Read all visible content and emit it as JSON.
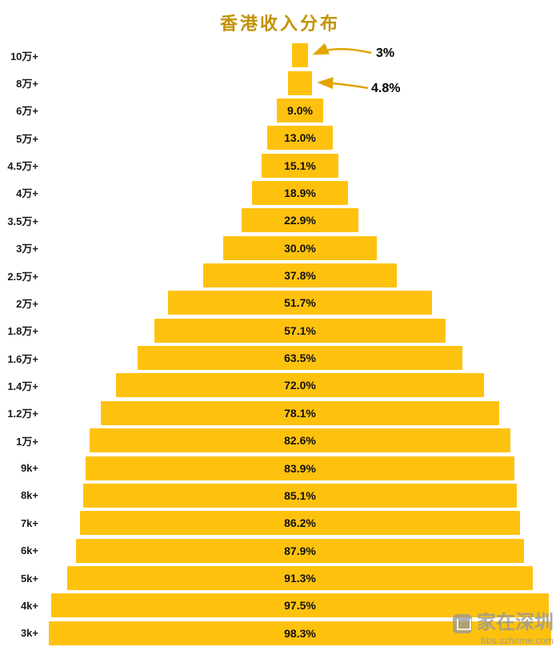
{
  "title": "香港收入分布",
  "watermark": {
    "brand": "家在深圳",
    "site": "bbs.szhome.com"
  },
  "chart_data": {
    "type": "bar",
    "subtype": "centered-pyramid-horizontal-bars",
    "title": "香港收入分布",
    "title_color": "#C49100",
    "bar_color": "#FEC20E",
    "annotation_color": "#E2A400",
    "scale_max": 100,
    "xlabel": "",
    "ylabel": "",
    "legend": "none",
    "grid": false,
    "categories": [
      "10万+",
      "8万+",
      "6万+",
      "5万+",
      "4.5万+",
      "4万+",
      "3.5万+",
      "3万+",
      "2.5万+",
      "2万+",
      "1.8万+",
      "1.6万+",
      "1.4万+",
      "1.2万+",
      "1万+",
      "9k+",
      "8k+",
      "7k+",
      "6k+",
      "5k+",
      "4k+",
      "3k+"
    ],
    "values": [
      3,
      4.8,
      9.0,
      13.0,
      15.1,
      18.9,
      22.9,
      30.0,
      37.8,
      51.7,
      57.1,
      63.5,
      72.0,
      78.1,
      82.6,
      83.9,
      85.1,
      86.2,
      87.9,
      91.3,
      97.5,
      98.3
    ],
    "labels": [
      "",
      "",
      "9.0%",
      "13.0%",
      "15.1%",
      "18.9%",
      "22.9%",
      "30.0%",
      "37.8%",
      "51.7%",
      "57.1%",
      "63.5%",
      "72.0%",
      "78.1%",
      "82.6%",
      "83.9%",
      "85.1%",
      "86.2%",
      "87.9%",
      "91.3%",
      "97.5%",
      "98.3%"
    ],
    "annotations": [
      {
        "row": 0,
        "text": "3%"
      },
      {
        "row": 1,
        "text": "4.8%"
      }
    ]
  }
}
